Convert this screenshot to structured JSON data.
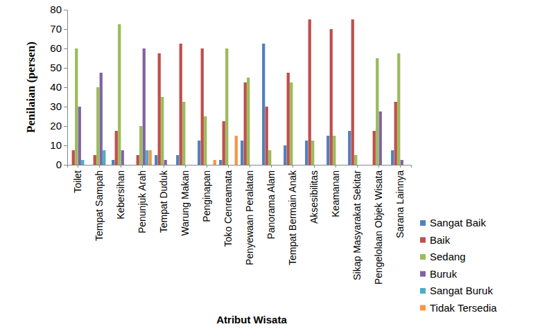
{
  "chart_data": {
    "type": "bar",
    "x_label": "Atribut Wisata",
    "y_label": "Penilaian (persen)",
    "categories": [
      "Toilet",
      "Tempat Sampah",
      "Kebersihan",
      "Penunjuk Arah",
      "Tempat Duduk",
      "Warung Makan",
      "Penginapan",
      "Toko Cenreamata",
      "Penyewaan Peralatan",
      "Panorama Alam",
      "Tempat Bermain Anak",
      "Aksesibilitas",
      "Keamanan",
      "Sikap Masyarakat Sekitar",
      "Pengelolaan Objek Wisata",
      "Sarana Lainnya"
    ],
    "series": [
      {
        "name": "Sangat Baik",
        "color": "#4f81bd",
        "values": [
          0,
          0,
          2.5,
          0,
          5,
          5,
          12.5,
          2.5,
          12.5,
          62.5,
          10,
          12.5,
          15,
          17.5,
          0,
          7.5
        ]
      },
      {
        "name": "Baik",
        "color": "#c0504d",
        "values": [
          7.5,
          5,
          17.5,
          5,
          57.5,
          62.5,
          60,
          22.5,
          42.5,
          30,
          47.5,
          75,
          70,
          75,
          17.5,
          32.5
        ]
      },
      {
        "name": "Sedang",
        "color": "#9bbb59",
        "values": [
          60,
          40,
          72.5,
          20,
          35,
          32.5,
          25,
          60,
          45,
          7.5,
          42.5,
          12.5,
          15,
          5,
          55,
          57.5
        ]
      },
      {
        "name": "Buruk",
        "color": "#8064a2",
        "values": [
          30,
          47.5,
          7.5,
          60,
          2.5,
          0,
          0,
          0,
          0,
          0,
          0,
          0,
          0,
          0,
          27.5,
          2.5
        ]
      },
      {
        "name": "Sangat Buruk",
        "color": "#4bacc6",
        "values": [
          2.5,
          7.5,
          0,
          7.5,
          0,
          0,
          0,
          0,
          0,
          0,
          0,
          0,
          0,
          0,
          0,
          0
        ]
      },
      {
        "name": "Tidak Tersedia",
        "color": "#f79646",
        "values": [
          0,
          0,
          0,
          7.5,
          0,
          0,
          2.5,
          15,
          0,
          0,
          0,
          0,
          0,
          0,
          0,
          0
        ]
      }
    ],
    "ylim": [
      0,
      80
    ],
    "yticks": [
      0,
      10,
      20,
      30,
      40,
      50,
      60,
      70,
      80
    ],
    "grid": false,
    "legend": "right"
  }
}
